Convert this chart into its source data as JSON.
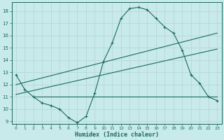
{
  "xlabel": "Humidex (Indice chaleur)",
  "bg_color": "#c8eaea",
  "grid_color": "#b8d8d8",
  "line_color": "#1a6b5a",
  "xlim": [
    -0.5,
    23.5
  ],
  "ylim": [
    8.8,
    18.7
  ],
  "yticks": [
    9,
    10,
    11,
    12,
    13,
    14,
    15,
    16,
    17,
    18
  ],
  "xticks": [
    0,
    1,
    2,
    3,
    4,
    5,
    6,
    7,
    8,
    9,
    10,
    11,
    12,
    13,
    14,
    15,
    16,
    17,
    18,
    19,
    20,
    21,
    22,
    23
  ],
  "curve1_x": [
    0,
    1,
    2,
    3,
    4,
    5,
    6,
    7,
    8,
    9,
    10,
    11,
    12,
    13,
    14,
    15,
    16,
    17,
    18,
    19,
    20,
    21,
    22,
    23
  ],
  "curve1_y": [
    12.8,
    11.6,
    11.0,
    10.5,
    10.3,
    10.0,
    9.3,
    8.9,
    9.4,
    11.3,
    13.9,
    15.4,
    17.4,
    18.2,
    18.3,
    18.1,
    17.4,
    16.7,
    16.2,
    14.8,
    12.8,
    12.1,
    11.0,
    10.7
  ],
  "curve2_x": [
    0,
    23
  ],
  "curve2_y": [
    12.0,
    16.2
  ],
  "curve3_x": [
    0,
    23
  ],
  "curve3_y": [
    11.2,
    14.9
  ],
  "curve4_x": [
    2,
    23
  ],
  "curve4_y": [
    11.0,
    11.0
  ]
}
